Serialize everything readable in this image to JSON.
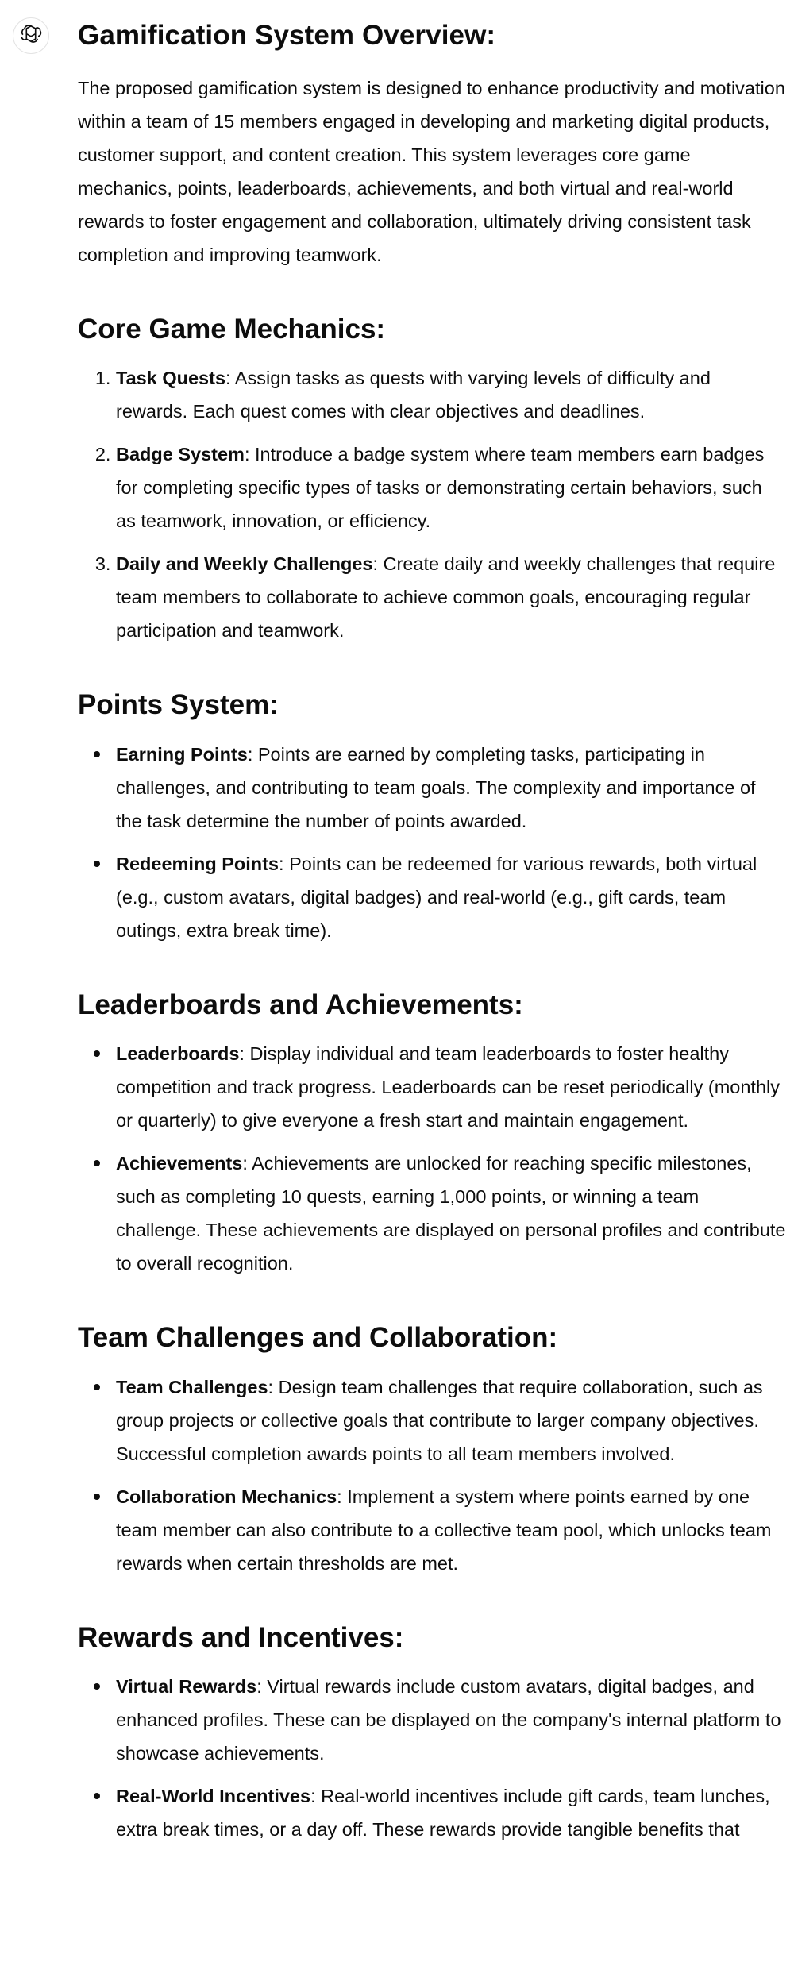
{
  "assistant": {
    "avatar_icon": "openai-logo-icon"
  },
  "title": "Gamification System Overview:",
  "intro": "The proposed gamification system is designed to enhance productivity and motivation within a team of 15 members engaged in developing and marketing digital products, customer support, and content creation. This system leverages core game mechanics, points, leaderboards, achievements, and both virtual and real-world rewards to foster engagement and collaboration, ultimately driving consistent task completion and improving teamwork.",
  "sections": {
    "core": {
      "heading": "Core Game Mechanics:",
      "items": [
        {
          "term": "Task Quests",
          "text": ": Assign tasks as quests with varying levels of difficulty and rewards. Each quest comes with clear objectives and deadlines."
        },
        {
          "term": "Badge System",
          "text": ": Introduce a badge system where team members earn badges for completing specific types of tasks or demonstrating certain behaviors, such as teamwork, innovation, or efficiency."
        },
        {
          "term": "Daily and Weekly Challenges",
          "text": ": Create daily and weekly challenges that require team members to collaborate to achieve common goals, encouraging regular participation and teamwork."
        }
      ]
    },
    "points": {
      "heading": "Points System:",
      "items": [
        {
          "term": "Earning Points",
          "text": ": Points are earned by completing tasks, participating in challenges, and contributing to team goals. The complexity and importance of the task determine the number of points awarded."
        },
        {
          "term": "Redeeming Points",
          "text": ": Points can be redeemed for various rewards, both virtual (e.g., custom avatars, digital badges) and real-world (e.g., gift cards, team outings, extra break time)."
        }
      ]
    },
    "leaderboards": {
      "heading": "Leaderboards and Achievements:",
      "items": [
        {
          "term": "Leaderboards",
          "text": ": Display individual and team leaderboards to foster healthy competition and track progress. Leaderboards can be reset periodically (monthly or quarterly) to give everyone a fresh start and maintain engagement."
        },
        {
          "term": "Achievements",
          "text": ": Achievements are unlocked for reaching specific milestones, such as completing 10 quests, earning 1,000 points, or winning a team challenge. These achievements are displayed on personal profiles and contribute to overall recognition."
        }
      ]
    },
    "team": {
      "heading": "Team Challenges and Collaboration:",
      "items": [
        {
          "term": "Team Challenges",
          "text": ": Design team challenges that require collaboration, such as group projects or collective goals that contribute to larger company objectives. Successful completion awards points to all team members involved."
        },
        {
          "term": "Collaboration Mechanics",
          "text": ": Implement a system where points earned by one team member can also contribute to a collective team pool, which unlocks team rewards when certain thresholds are met."
        }
      ]
    },
    "rewards": {
      "heading": "Rewards and Incentives:",
      "items": [
        {
          "term": "Virtual Rewards",
          "text": ": Virtual rewards include custom avatars, digital badges, and enhanced profiles. These can be displayed on the company's internal platform to showcase achievements."
        },
        {
          "term": "Real-World Incentives",
          "text": ": Real-world incentives include gift cards, team lunches, extra break times, or a day off. These rewards provide tangible benefits that"
        }
      ]
    }
  }
}
